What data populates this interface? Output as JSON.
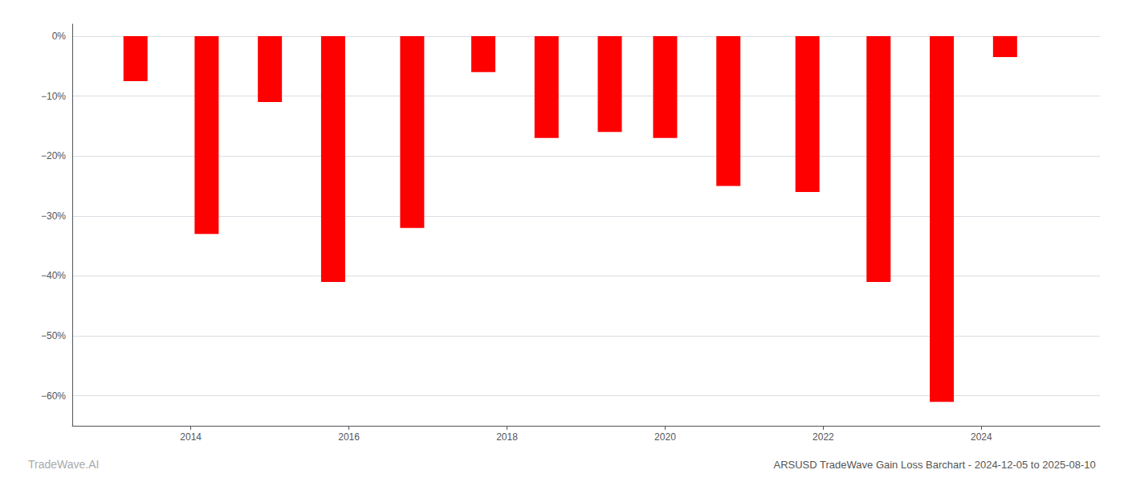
{
  "chart_data": {
    "type": "bar",
    "title": "ARSUSD TradeWave Gain Loss Barchart - 2024-12-05 to 2025-08-10",
    "annotations": [
      "TradeWave.AI"
    ],
    "x": [
      2013.3,
      2014.2,
      2015.0,
      2015.8,
      2016.8,
      2017.7,
      2018.5,
      2019.3,
      2020.0,
      2020.8,
      2021.8,
      2022.7,
      2023.5,
      2024.3
    ],
    "values": [
      -7.5,
      -33.0,
      -11.0,
      -41.0,
      -32.0,
      -6.0,
      -17.0,
      -16.0,
      -17.0,
      -25.0,
      -26.0,
      -41.0,
      -61.0,
      -3.5
    ],
    "color": "#ff0000",
    "xlim": [
      2012.5,
      2025.5
    ],
    "xticks": [
      2014,
      2016,
      2018,
      2020,
      2022,
      2024
    ],
    "ylim": [
      -65,
      2
    ],
    "yticks": [
      {
        "value": 0,
        "label": "0%"
      },
      {
        "value": -10,
        "label": "−10%"
      },
      {
        "value": -20,
        "label": "−20%"
      },
      {
        "value": -30,
        "label": "−30%"
      },
      {
        "value": -40,
        "label": "−40%"
      },
      {
        "value": -50,
        "label": "−50%"
      },
      {
        "value": -60,
        "label": "−60%"
      }
    ],
    "grid": true
  }
}
